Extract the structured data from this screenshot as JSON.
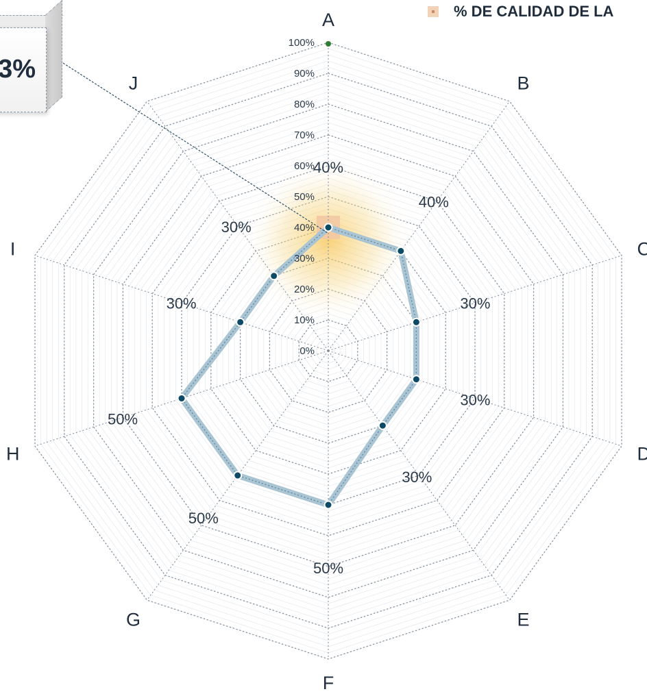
{
  "chart_data": {
    "type": "radar",
    "axes": [
      "A",
      "B",
      "C",
      "D",
      "E",
      "F",
      "G",
      "H",
      "I",
      "J"
    ],
    "values": [
      40,
      40,
      30,
      30,
      30,
      50,
      50,
      50,
      30,
      30
    ],
    "value_labels": [
      "40%",
      "40%",
      "30%",
      "30%",
      "30%",
      "50%",
      "50%",
      "50%",
      "30%",
      "30%"
    ],
    "r_ticks": [
      "0%",
      "10%",
      "20%",
      "30%",
      "40%",
      "50%",
      "60%",
      "70%",
      "80%",
      "90%",
      "100%"
    ],
    "rlim": [
      0,
      100
    ],
    "legend": {
      "label": "% DE CALIDAD DE LA",
      "position": "top-right"
    },
    "callout": {
      "text": "3%"
    },
    "colors": {
      "series_line": "#a9c4d3",
      "series_point": "#0d4a66",
      "grid": "#7f8b98",
      "highlight_point": "#2e7d32",
      "glow": "#f6c451"
    }
  }
}
